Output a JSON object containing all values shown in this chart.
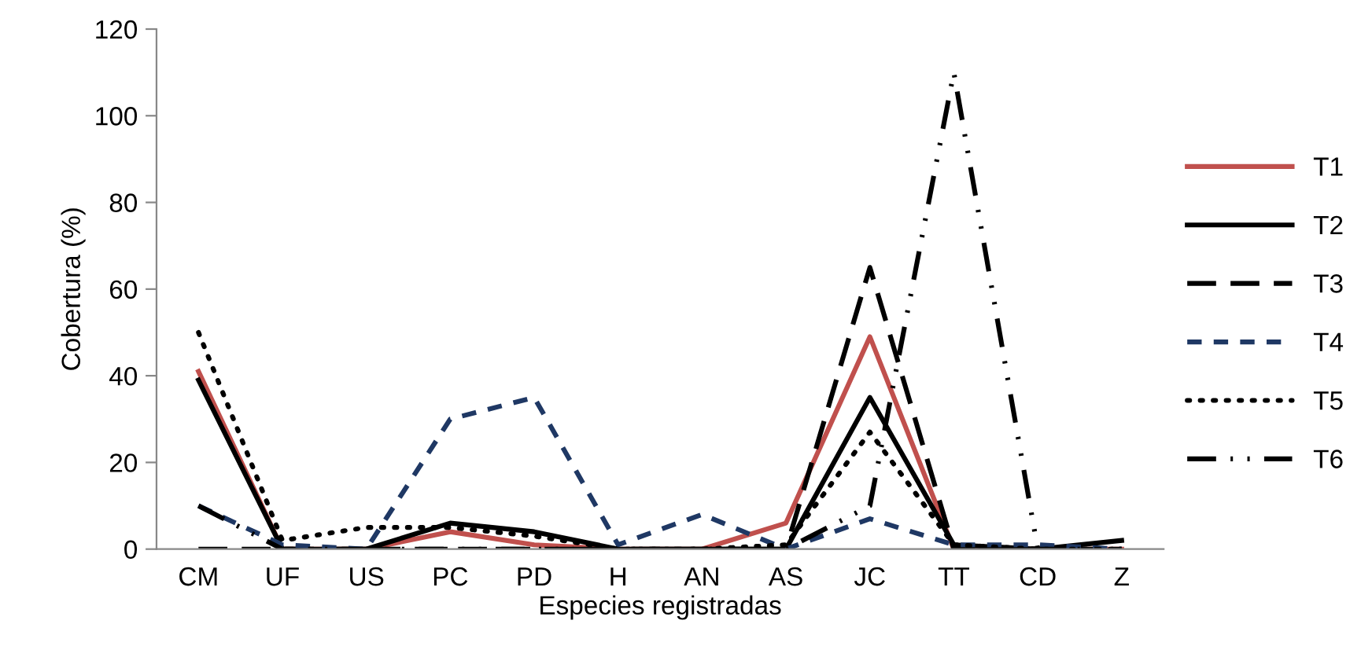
{
  "chart_data": {
    "type": "line",
    "xlabel": "Especies registradas",
    "ylabel": "Cobertura (%)",
    "categories": [
      "CM",
      "UF",
      "US",
      "PC",
      "PD",
      "H",
      "AN",
      "AS",
      "JC",
      "TT",
      "CD",
      "Z"
    ],
    "ylim": [
      0,
      120
    ],
    "yticks": [
      0,
      20,
      40,
      60,
      80,
      100,
      120
    ],
    "grid": false,
    "legend": "right",
    "series": [
      {
        "name": "T1",
        "color": "#c0504d",
        "line_style": "solid",
        "values": [
          41,
          0,
          0,
          4,
          1,
          0,
          0,
          6,
          49,
          0,
          0,
          0
        ]
      },
      {
        "name": "T2",
        "color": "#000000",
        "line_style": "solid",
        "values": [
          39,
          0,
          0,
          6,
          4,
          0,
          0,
          0,
          35,
          1,
          0,
          2
        ]
      },
      {
        "name": "T3",
        "color": "#000000",
        "line_style": "longdash",
        "values": [
          0,
          0,
          0,
          0,
          0,
          0,
          0,
          0,
          65,
          0,
          0,
          0
        ]
      },
      {
        "name": "T4",
        "color": "#1f3864",
        "line_style": "dashed",
        "values": [
          10,
          1,
          0,
          30,
          35,
          1,
          8,
          0,
          7,
          1,
          1,
          0
        ]
      },
      {
        "name": "T5",
        "color": "#000000",
        "line_style": "dotted",
        "values": [
          50,
          2,
          5,
          5,
          3,
          0,
          0,
          1,
          27,
          1,
          0,
          0
        ]
      },
      {
        "name": "T6",
        "color": "#000000",
        "line_style": "dashdotdot",
        "values": [
          10,
          0,
          0,
          0,
          0,
          0,
          0,
          0,
          10,
          110,
          0,
          0
        ]
      }
    ]
  }
}
